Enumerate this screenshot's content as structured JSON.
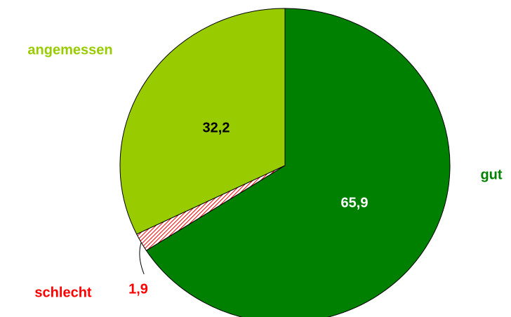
{
  "chart_data": {
    "type": "pie",
    "categories": [
      "gut",
      "schlecht",
      "angemessen"
    ],
    "values": [
      65.9,
      1.9,
      32.2
    ],
    "value_labels": [
      "65,9",
      "1,9",
      "32,2"
    ],
    "colors": [
      "#008000",
      "#ff0000",
      "#99cc00"
    ]
  }
}
